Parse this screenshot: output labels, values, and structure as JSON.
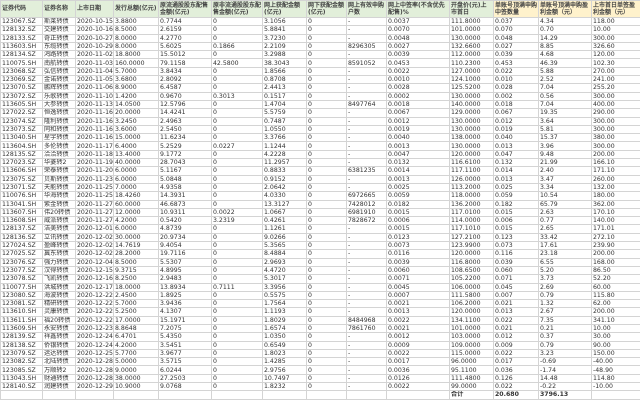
{
  "headers": [
    "证券代码",
    "证券名称",
    "上市日期",
    "发行总额(亿元)",
    "原流通股股东配售金额(亿元)",
    "原非流通股股东配售金额(亿元)",
    "网上获配金额(亿元)",
    "网下获配金额(亿元)",
    "网上有效申购户数",
    "网上中签率(不含优先配售)%",
    "开盘价(元)上市首日",
    "单账号顶满申购中签数量",
    "单账号顶满申购盈利金额（元）",
    "上市首日单签盈利金额（元）"
  ],
  "header_colors": {
    "default": "#e2efda",
    "highlight": "#fff2cc"
  },
  "rows": [
    [
      "123067.SZ",
      "斯莱转债",
      "2020-10-15",
      "3.8800",
      "0.7744",
      "0",
      "3.1056",
      "0",
      "-",
      "0.0037",
      "111.8000",
      "0.037",
      "4.34",
      "118.00"
    ],
    [
      "128132.SZ",
      "交建转债",
      "2020-10-16",
      "8.5000",
      "2.6159",
      "0",
      "5.8841",
      "0",
      "-",
      "0.0070",
      "101.0000",
      "0.070",
      "0.70",
      "10.00"
    ],
    [
      "128133.SZ",
      "奇正转债",
      "2020-10-27",
      "8.0000",
      "4.2770",
      "0",
      "3.7230",
      "0",
      "-",
      "0.0048",
      "130.0000",
      "0.048",
      "14.29",
      "300.00"
    ],
    [
      "113603.SH",
      "东缆转债",
      "2020-10-29",
      "8.0000",
      "5.6025",
      "0.1866",
      "2.2109",
      "0",
      "8296305",
      "0.0027",
      "132.6600",
      "0.027",
      "8.85",
      "326.60"
    ],
    [
      "128134.SZ",
      "鸿路转债",
      "2020-11-02",
      "18.8000",
      "15.5012",
      "0",
      "3.2988",
      "0",
      "-",
      "0.0039",
      "112.0000",
      "0.039",
      "4.68",
      "120.00"
    ],
    [
      "110075.SH",
      "南航转债",
      "2020-11-03",
      "160.0000",
      "79.1158",
      "42.5800",
      "38.3043",
      "0",
      "8591052",
      "0.0453",
      "110.2300",
      "0.453",
      "46.39",
      "102.30"
    ],
    [
      "123068.SZ",
      "弘信转债",
      "2020-11-04",
      "5.7000",
      "3.8434",
      "0",
      "1.8566",
      "0",
      "-",
      "0.0022",
      "127.0000",
      "0.022",
      "5.88",
      "270.00"
    ],
    [
      "123069.SZ",
      "金诺转债",
      "2020-11-05",
      "3.6800",
      "2.8092",
      "0",
      "0.8708",
      "0",
      "-",
      "0.0010",
      "124.1000",
      "0.010",
      "2.52",
      "241.00"
    ],
    [
      "123070.SZ",
      "鹏辉转债",
      "2020-11-06",
      "8.9000",
      "6.4587",
      "0",
      "2.4413",
      "0",
      "-",
      "0.0028",
      "125.5200",
      "0.028",
      "7.04",
      "255.20"
    ],
    [
      "123072.SZ",
      "乐歌转债",
      "2020-11-10",
      "1.4200",
      "0.9670",
      "0.3013",
      "0.1517",
      "0",
      "-",
      "0.0002",
      "130.0000",
      "0.002",
      "0.56",
      "300.00"
    ],
    [
      "113605.SH",
      "大参转债",
      "2020-11-13",
      "14.0500",
      "12.5796",
      "0",
      "1.4704",
      "0",
      "8497764",
      "0.0018",
      "140.0000",
      "0.018",
      "7.04",
      "400.00"
    ],
    [
      "127022.SZ",
      "恒逸转债",
      "2020-11-16",
      "20.0000",
      "14.4241",
      "0",
      "5.5759",
      "0",
      "-",
      "0.0067",
      "129.0000",
      "0.067",
      "19.35",
      "290.00"
    ],
    [
      "123074.SZ",
      "隆利转债",
      "2020-11-16",
      "3.2450",
      "2.4963",
      "0",
      "0.7487",
      "0",
      "-",
      "0.0012",
      "130.0000",
      "0.012",
      "3.64",
      "300.00"
    ],
    [
      "123073.SZ",
      "同和转债",
      "2020-11-16",
      "3.6000",
      "2.5450",
      "0",
      "1.0550",
      "0",
      "-",
      "0.0019",
      "130.0000",
      "0.019",
      "5.81",
      "300.00"
    ],
    [
      "113040.SH",
      "星宇转债",
      "2020-11-16",
      "15.0000",
      "11.6234",
      "0",
      "3.3766",
      "0",
      "-",
      "0.0040",
      "138.0000",
      "0.040",
      "15.37",
      "380.00"
    ],
    [
      "113604.SH",
      "多伦转债",
      "2020-11-17",
      "6.4000",
      "5.2529",
      "0.0227",
      "1.1244",
      "0",
      "-",
      "0.0013",
      "130.0000",
      "0.013",
      "3.96",
      "300.00"
    ],
    [
      "128135.SZ",
      "洽洽转债",
      "2020-11-18",
      "13.4000",
      "9.1772",
      "0",
      "4.2228",
      "0",
      "-",
      "0.0047",
      "120.0000",
      "0.047",
      "9.48",
      "200.00"
    ],
    [
      "127023.SZ",
      "华菱转2",
      "2020-11-19",
      "40.0000",
      "28.7043",
      "0",
      "11.2957",
      "0",
      "-",
      "0.0132",
      "116.6100",
      "0.132",
      "21.99",
      "166.10"
    ],
    [
      "113606.SH",
      "荣泰转债",
      "2020-11-20",
      "6.0000",
      "5.1167",
      "0",
      "0.8833",
      "0",
      "6381235",
      "0.0014",
      "117.1100",
      "0.014",
      "2.40",
      "171.10"
    ],
    [
      "123075.SZ",
      "贝斯转债",
      "2020-11-23",
      "6.0000",
      "5.0848",
      "0",
      "0.9152",
      "0",
      "-",
      "0.0013",
      "126.0000",
      "0.013",
      "3.47",
      "260.00"
    ],
    [
      "123071.SZ",
      "天能转债",
      "2020-11-25",
      "7.0000",
      "4.9358",
      "0",
      "2.0642",
      "0",
      "-",
      "0.0025",
      "113.2000",
      "0.025",
      "3.34",
      "132.00"
    ],
    [
      "110076.SH",
      "华海转债",
      "2020-11-25",
      "18.4260",
      "14.3931",
      "0",
      "4.0330",
      "0",
      "6972665",
      "0.0059",
      "118.0000",
      "0.059",
      "10.54",
      "180.00"
    ],
    [
      "113041.SH",
      "紫金转债",
      "2020-11-27",
      "60.0000",
      "46.6873",
      "0",
      "13.3127",
      "0",
      "7428012",
      "0.0182",
      "136.2000",
      "0.182",
      "65.79",
      "362.00"
    ],
    [
      "113607.SH",
      "伟20转债",
      "2020-11-27",
      "12.0000",
      "10.9311",
      "0.0022",
      "1.0667",
      "0",
      "6981910",
      "0.0015",
      "117.0100",
      "0.015",
      "2.63",
      "170.10"
    ],
    [
      "113608.SH",
      "威派转债",
      "2020-11-27",
      "4.2000",
      "0.5420",
      "3.2319",
      "0.4261",
      "0",
      "7828672",
      "0.0006",
      "114.0000",
      "0.006",
      "0.77",
      "140.00"
    ],
    [
      "128137.SZ",
      "洁美转债",
      "2020-12-01",
      "6.0000",
      "4.8739",
      "0",
      "1.1261",
      "0",
      "-",
      "0.0015",
      "117.1010",
      "0.015",
      "2.65",
      "171.01"
    ],
    [
      "128136.SZ",
      "立讯转债",
      "2020-12-02",
      "30.0000",
      "20.9734",
      "0",
      "9.0266",
      "0",
      "-",
      "0.0123",
      "127.2100",
      "0.123",
      "33.42",
      "272.10"
    ],
    [
      "127024.SZ",
      "盈峰转债",
      "2020-12-02",
      "14.7619",
      "9.4054",
      "0",
      "5.3565",
      "0",
      "-",
      "0.0073",
      "123.9900",
      "0.073",
      "17.61",
      "239.90"
    ],
    [
      "127025.SZ",
      "冀东转债",
      "2020-12-02",
      "28.2000",
      "19.7116",
      "0",
      "8.4884",
      "0",
      "-",
      "0.0116",
      "120.0000",
      "0.116",
      "23.18",
      "200.00"
    ],
    [
      "123076.SZ",
      "强力转债",
      "2020-12-04",
      "8.5000",
      "5.5307",
      "0",
      "2.9693",
      "0",
      "-",
      "0.0039",
      "116.8000",
      "0.039",
      "6.55",
      "168.00"
    ],
    [
      "123077.SZ",
      "汉得转债",
      "2020-12-15",
      "9.3715",
      "4.8995",
      "0",
      "4.4720",
      "0",
      "-",
      "0.0060",
      "108.6500",
      "0.060",
      "5.20",
      "86.50"
    ],
    [
      "123078.SZ",
      "飞凯转债",
      "2020-12-16",
      "8.2500",
      "2.9483",
      "0",
      "5.3017",
      "0",
      "-",
      "0.0071",
      "105.2200",
      "0.071",
      "3.73",
      "52.20"
    ],
    [
      "110077.SH",
      "洪城转债",
      "2020-12-17",
      "18.0000",
      "13.8934",
      "0.7111",
      "3.3956",
      "0",
      "-",
      "0.0045",
      "106.0000",
      "0.045",
      "2.69",
      "60.00"
    ],
    [
      "123080.SZ",
      "海波转债",
      "2020-12-22",
      "2.4500",
      "1.8925",
      "0",
      "0.5575",
      "0",
      "-",
      "0.0007",
      "111.5800",
      "0.007",
      "0.79",
      "115.80"
    ],
    [
      "123081.SZ",
      "精研转债",
      "2020-12-22",
      "5.7000",
      "3.9436",
      "0",
      "1.7564",
      "0",
      "-",
      "0.0021",
      "106.2000",
      "0.021",
      "1.32",
      "62.00"
    ],
    [
      "113610.SH",
      "灵康转债",
      "2020-12-22",
      "5.2500",
      "4.1307",
      "0",
      "1.1193",
      "0",
      "-",
      "0.0013",
      "120.0000",
      "0.013",
      "2.67",
      "200.00"
    ],
    [
      "113611.SH",
      "福20转债",
      "2020-12-22",
      "17.0000",
      "15.1971",
      "0",
      "1.8029",
      "0",
      "8484968",
      "0.0022",
      "134.1100",
      "0.022",
      "7.35",
      "341.10"
    ],
    [
      "113609.SH",
      "永安转债",
      "2020-12-23",
      "8.8648",
      "7.2075",
      "0",
      "1.6574",
      "0",
      "7861760",
      "0.0021",
      "101.0000",
      "0.021",
      "0.21",
      "10.00"
    ],
    [
      "128139.SZ",
      "祥鑫转债",
      "2020-12-24",
      "6.4701",
      "5.4350",
      "0",
      "1.0350",
      "0",
      "-",
      "0.0012",
      "103.0000",
      "0.012",
      "0.37",
      "30.00"
    ],
    [
      "128138.SZ",
      "侨银转债",
      "2020-12-24",
      "4.2000",
      "3.5451",
      "0",
      "0.6549",
      "0",
      "-",
      "0.0009",
      "109.0000",
      "0.009",
      "0.79",
      "90.00"
    ],
    [
      "123079.SZ",
      "运达转债",
      "2020-12-25",
      "5.7700",
      "3.9677",
      "0",
      "1.8023",
      "0",
      "-",
      "0.0022",
      "115.0000",
      "0.022",
      "3.23",
      "150.00"
    ],
    [
      "123082.SZ",
      "北陆转债",
      "2020-12-28",
      "5.0000",
      "3.5715",
      "0",
      "1.4285",
      "0",
      "-",
      "0.0017",
      "96.0000",
      "0.017",
      "-0.69",
      "-40.00"
    ],
    [
      "123085.SZ",
      "万顺转2",
      "2020-12-28",
      "9.0000",
      "6.0244",
      "0",
      "2.9756",
      "0",
      "-",
      "0.0036",
      "95.1100",
      "0.036",
      "-1.74",
      "-48.90"
    ],
    [
      "113043.SH",
      "财通转债",
      "2020-12-28",
      "38.0000",
      "27.2503",
      "0",
      "10.7497",
      "0",
      "-",
      "0.0126",
      "111.4800",
      "0.126",
      "14.48",
      "114.80"
    ],
    [
      "128140.SZ",
      "润建转债",
      "2020-12-29",
      "10.9000",
      "9.0768",
      "0",
      "1.8232",
      "0",
      "-",
      "0.0022",
      "99.0000",
      "0.022",
      "-0.22",
      "-10.00"
    ]
  ],
  "total": {
    "label": "合计",
    "lots": "20.680",
    "profit": "3796.13"
  }
}
